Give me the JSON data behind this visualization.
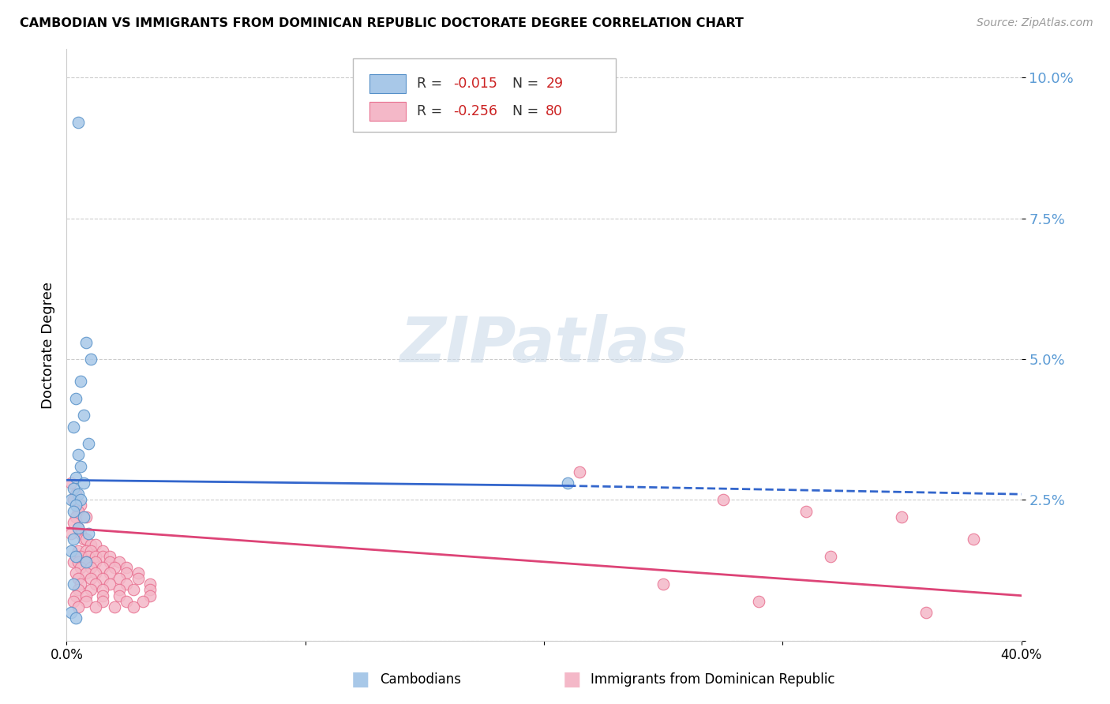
{
  "title": "CAMBODIAN VS IMMIGRANTS FROM DOMINICAN REPUBLIC DOCTORATE DEGREE CORRELATION CHART",
  "source": "Source: ZipAtlas.com",
  "ylabel": "Doctorate Degree",
  "xlim": [
    0.0,
    0.4
  ],
  "ylim": [
    0.0,
    0.105
  ],
  "yticks": [
    0.0,
    0.025,
    0.05,
    0.075,
    0.1
  ],
  "ytick_labels": [
    "",
    "2.5%",
    "5.0%",
    "7.5%",
    "10.0%"
  ],
  "xticks": [
    0.0,
    0.1,
    0.2,
    0.3,
    0.4
  ],
  "xtick_labels": [
    "0.0%",
    "",
    "",
    "",
    "40.0%"
  ],
  "watermark": "ZIPatlas",
  "blue_color": "#a8c8e8",
  "pink_color": "#f4b8c8",
  "blue_edge_color": "#5590c8",
  "pink_edge_color": "#e87090",
  "blue_line_color": "#3366cc",
  "pink_line_color": "#dd4477",
  "blue_scatter": [
    [
      0.005,
      0.092
    ],
    [
      0.008,
      0.053
    ],
    [
      0.01,
      0.05
    ],
    [
      0.006,
      0.046
    ],
    [
      0.004,
      0.043
    ],
    [
      0.007,
      0.04
    ],
    [
      0.003,
      0.038
    ],
    [
      0.009,
      0.035
    ],
    [
      0.005,
      0.033
    ],
    [
      0.006,
      0.031
    ],
    [
      0.004,
      0.029
    ],
    [
      0.007,
      0.028
    ],
    [
      0.003,
      0.027
    ],
    [
      0.005,
      0.026
    ],
    [
      0.002,
      0.025
    ],
    [
      0.006,
      0.025
    ],
    [
      0.004,
      0.024
    ],
    [
      0.003,
      0.023
    ],
    [
      0.007,
      0.022
    ],
    [
      0.005,
      0.02
    ],
    [
      0.009,
      0.019
    ],
    [
      0.003,
      0.018
    ],
    [
      0.002,
      0.016
    ],
    [
      0.004,
      0.015
    ],
    [
      0.008,
      0.014
    ],
    [
      0.003,
      0.01
    ],
    [
      0.002,
      0.005
    ],
    [
      0.004,
      0.004
    ],
    [
      0.21,
      0.028
    ]
  ],
  "pink_scatter": [
    [
      0.002,
      0.028
    ],
    [
      0.004,
      0.026
    ],
    [
      0.003,
      0.025
    ],
    [
      0.006,
      0.024
    ],
    [
      0.005,
      0.023
    ],
    [
      0.004,
      0.022
    ],
    [
      0.008,
      0.022
    ],
    [
      0.003,
      0.021
    ],
    [
      0.005,
      0.02
    ],
    [
      0.006,
      0.019
    ],
    [
      0.002,
      0.019
    ],
    [
      0.007,
      0.018
    ],
    [
      0.008,
      0.018
    ],
    [
      0.01,
      0.017
    ],
    [
      0.012,
      0.017
    ],
    [
      0.005,
      0.016
    ],
    [
      0.008,
      0.016
    ],
    [
      0.01,
      0.016
    ],
    [
      0.015,
      0.016
    ],
    [
      0.004,
      0.015
    ],
    [
      0.006,
      0.015
    ],
    [
      0.009,
      0.015
    ],
    [
      0.012,
      0.015
    ],
    [
      0.015,
      0.015
    ],
    [
      0.018,
      0.015
    ],
    [
      0.003,
      0.014
    ],
    [
      0.005,
      0.014
    ],
    [
      0.008,
      0.014
    ],
    [
      0.012,
      0.014
    ],
    [
      0.018,
      0.014
    ],
    [
      0.022,
      0.014
    ],
    [
      0.006,
      0.013
    ],
    [
      0.01,
      0.013
    ],
    [
      0.015,
      0.013
    ],
    [
      0.02,
      0.013
    ],
    [
      0.025,
      0.013
    ],
    [
      0.004,
      0.012
    ],
    [
      0.008,
      0.012
    ],
    [
      0.012,
      0.012
    ],
    [
      0.018,
      0.012
    ],
    [
      0.025,
      0.012
    ],
    [
      0.03,
      0.012
    ],
    [
      0.005,
      0.011
    ],
    [
      0.01,
      0.011
    ],
    [
      0.015,
      0.011
    ],
    [
      0.022,
      0.011
    ],
    [
      0.03,
      0.011
    ],
    [
      0.006,
      0.01
    ],
    [
      0.012,
      0.01
    ],
    [
      0.018,
      0.01
    ],
    [
      0.025,
      0.01
    ],
    [
      0.035,
      0.01
    ],
    [
      0.005,
      0.009
    ],
    [
      0.01,
      0.009
    ],
    [
      0.015,
      0.009
    ],
    [
      0.022,
      0.009
    ],
    [
      0.028,
      0.009
    ],
    [
      0.035,
      0.009
    ],
    [
      0.004,
      0.008
    ],
    [
      0.008,
      0.008
    ],
    [
      0.015,
      0.008
    ],
    [
      0.022,
      0.008
    ],
    [
      0.035,
      0.008
    ],
    [
      0.003,
      0.007
    ],
    [
      0.008,
      0.007
    ],
    [
      0.015,
      0.007
    ],
    [
      0.025,
      0.007
    ],
    [
      0.032,
      0.007
    ],
    [
      0.005,
      0.006
    ],
    [
      0.012,
      0.006
    ],
    [
      0.02,
      0.006
    ],
    [
      0.028,
      0.006
    ],
    [
      0.215,
      0.03
    ],
    [
      0.275,
      0.025
    ],
    [
      0.31,
      0.023
    ],
    [
      0.32,
      0.015
    ],
    [
      0.35,
      0.022
    ],
    [
      0.38,
      0.018
    ],
    [
      0.25,
      0.01
    ],
    [
      0.29,
      0.007
    ],
    [
      0.36,
      0.005
    ]
  ],
  "blue_trend": {
    "x_start": 0.0,
    "y_start": 0.0285,
    "x_solid_end": 0.21,
    "y_solid_end": 0.0275,
    "x_dash_end": 0.4,
    "y_dash_end": 0.026
  },
  "pink_trend": {
    "x_start": 0.0,
    "y_start": 0.02,
    "x_end": 0.4,
    "y_end": 0.008
  }
}
